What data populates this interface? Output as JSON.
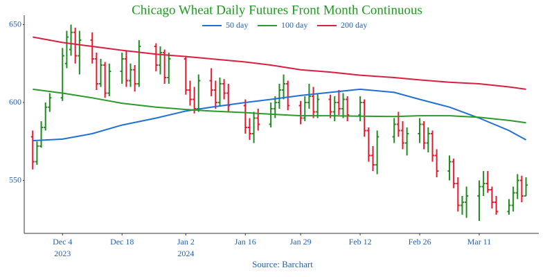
{
  "chart_data": {
    "type": "ohlc",
    "title": "Chicago Wheat Daily Futures Front Month Continuous",
    "source": "Source: Barchart",
    "increasing_color": "#1f8a1f",
    "decreasing_color": "#e8172b",
    "x": [
      "2023-11-27",
      "2023-11-28",
      "2023-11-29",
      "2023-11-30",
      "2023-12-01",
      "2023-12-04",
      "2023-12-05",
      "2023-12-06",
      "2023-12-07",
      "2023-12-08",
      "2023-12-11",
      "2023-12-12",
      "2023-12-13",
      "2023-12-14",
      "2023-12-15",
      "2023-12-18",
      "2023-12-19",
      "2023-12-20",
      "2023-12-21",
      "2023-12-22",
      "2023-12-26",
      "2023-12-27",
      "2023-12-28",
      "2023-12-29",
      "2024-01-02",
      "2024-01-03",
      "2024-01-04",
      "2024-01-05",
      "2024-01-08",
      "2024-01-09",
      "2024-01-10",
      "2024-01-11",
      "2024-01-12",
      "2024-01-16",
      "2024-01-17",
      "2024-01-18",
      "2024-01-19",
      "2024-01-22",
      "2024-01-23",
      "2024-01-24",
      "2024-01-25",
      "2024-01-26",
      "2024-01-29",
      "2024-01-30",
      "2024-01-31",
      "2024-02-01",
      "2024-02-02",
      "2024-02-05",
      "2024-02-06",
      "2024-02-07",
      "2024-02-08",
      "2024-02-09",
      "2024-02-12",
      "2024-02-13",
      "2024-02-14",
      "2024-02-15",
      "2024-02-16",
      "2024-02-20",
      "2024-02-21",
      "2024-02-22",
      "2024-02-23",
      "2024-02-26",
      "2024-02-27",
      "2024-02-28",
      "2024-02-29",
      "2024-03-01",
      "2024-03-04",
      "2024-03-05",
      "2024-03-06",
      "2024-03-07",
      "2024-03-08",
      "2024-03-11",
      "2024-03-12",
      "2024-03-13",
      "2024-03-14",
      "2024-03-15",
      "2024-03-18",
      "2024-03-19",
      "2024-03-20",
      "2024-03-21",
      "2024-03-22"
    ],
    "open": [
      578,
      562,
      572,
      584,
      597,
      603,
      625,
      634,
      645,
      630,
      640,
      628,
      612,
      624,
      606,
      620,
      628,
      614,
      621,
      612,
      636,
      624,
      632,
      616,
      628,
      608,
      602,
      596,
      614,
      608,
      600,
      612,
      606,
      598,
      584,
      580,
      590,
      586,
      596,
      600,
      608,
      612,
      598,
      590,
      600,
      604,
      594,
      602,
      594,
      600,
      596,
      602,
      592,
      600,
      582,
      566,
      560,
      578,
      586,
      582,
      574,
      580,
      586,
      574,
      580,
      566,
      556,
      562,
      548,
      534,
      536,
      540,
      546,
      548,
      544,
      536,
      530,
      534,
      542,
      550,
      540
    ],
    "high": [
      582,
      575,
      588,
      600,
      606,
      635,
      646,
      650,
      648,
      646,
      645,
      632,
      628,
      626,
      625,
      632,
      633,
      625,
      624,
      640,
      638,
      636,
      634,
      632,
      630,
      614,
      610,
      618,
      622,
      614,
      616,
      615,
      612,
      602,
      590,
      594,
      596,
      600,
      604,
      612,
      618,
      614,
      601,
      604,
      612,
      610,
      606,
      605,
      604,
      608,
      606,
      604,
      604,
      602,
      584,
      572,
      582,
      590,
      594,
      588,
      584,
      590,
      588,
      584,
      582,
      570,
      566,
      564,
      552,
      540,
      546,
      550,
      556,
      556,
      546,
      540,
      538,
      546,
      554,
      553,
      552
    ],
    "low": [
      557,
      560,
      571,
      582,
      594,
      601,
      622,
      630,
      625,
      618,
      625,
      608,
      610,
      603,
      604,
      612,
      610,
      610,
      607,
      610,
      620,
      618,
      612,
      612,
      605,
      598,
      593,
      594,
      604,
      596,
      598,
      602,
      594,
      580,
      576,
      574,
      582,
      584,
      590,
      596,
      602,
      595,
      586,
      588,
      596,
      590,
      590,
      590,
      588,
      592,
      590,
      588,
      588,
      578,
      562,
      556,
      554,
      574,
      578,
      570,
      566,
      574,
      570,
      568,
      562,
      552,
      550,
      545,
      530,
      528,
      526,
      524,
      540,
      542,
      532,
      528,
      528,
      530,
      538,
      536,
      540
    ],
    "close": [
      562,
      572,
      584,
      597,
      603,
      630,
      642,
      645,
      630,
      640,
      628,
      612,
      624,
      606,
      620,
      628,
      614,
      621,
      612,
      636,
      624,
      632,
      616,
      628,
      608,
      602,
      596,
      614,
      608,
      600,
      612,
      606,
      598,
      584,
      580,
      590,
      586,
      596,
      600,
      608,
      612,
      598,
      590,
      600,
      604,
      594,
      602,
      594,
      600,
      596,
      602,
      592,
      600,
      582,
      566,
      560,
      578,
      586,
      582,
      574,
      580,
      586,
      574,
      580,
      566,
      556,
      562,
      548,
      534,
      536,
      540,
      546,
      548,
      544,
      536,
      530,
      534,
      542,
      550,
      540,
      547
    ],
    "series": [
      {
        "name": "50 day",
        "color": "#1f6fd6",
        "x": [
          "2023-11-27",
          "2023-12-04",
          "2023-12-11",
          "2023-12-18",
          "2023-12-26",
          "2024-01-02",
          "2024-01-08",
          "2024-01-16",
          "2024-01-22",
          "2024-01-29",
          "2024-02-05",
          "2024-02-12",
          "2024-02-20",
          "2024-02-26",
          "2024-03-04",
          "2024-03-11",
          "2024-03-18",
          "2024-03-22"
        ],
        "values": [
          575.5,
          576.5,
          580,
          585.5,
          590,
          594.5,
          597,
          600,
          602,
          604.5,
          606.5,
          608.5,
          606.5,
          602,
          597,
          590,
          582,
          576
        ]
      },
      {
        "name": "100 day",
        "color": "#2a9a2a",
        "x": [
          "2023-11-27",
          "2023-12-04",
          "2023-12-11",
          "2023-12-18",
          "2023-12-26",
          "2024-01-02",
          "2024-01-08",
          "2024-01-16",
          "2024-01-22",
          "2024-01-29",
          "2024-02-05",
          "2024-02-12",
          "2024-02-20",
          "2024-02-26",
          "2024-03-04",
          "2024-03-11",
          "2024-03-18",
          "2024-03-22"
        ],
        "values": [
          608.5,
          606,
          603,
          599.5,
          597,
          595.5,
          594.5,
          593.5,
          592.5,
          591.5,
          591.5,
          591.2,
          591,
          591.5,
          591.5,
          590.5,
          588.5,
          587
        ]
      },
      {
        "name": "200 day",
        "color": "#d81f3f",
        "x": [
          "2023-11-27",
          "2023-12-04",
          "2023-12-11",
          "2023-12-18",
          "2023-12-26",
          "2024-01-02",
          "2024-01-08",
          "2024-01-16",
          "2024-01-22",
          "2024-01-29",
          "2024-02-05",
          "2024-02-12",
          "2024-02-20",
          "2024-02-26",
          "2024-03-04",
          "2024-03-11",
          "2024-03-18",
          "2024-03-22"
        ],
        "values": [
          642,
          638.5,
          636,
          633.5,
          631,
          629.5,
          628,
          626,
          624,
          621,
          619.5,
          617.5,
          616,
          614.5,
          613,
          612,
          610,
          608.5
        ]
      }
    ],
    "xlim": [
      "2023-11-25",
      "2024-03-25"
    ],
    "xticks": [
      {
        "value": "2023-12-04",
        "label": "Dec 4",
        "sublabel": "2023"
      },
      {
        "value": "2023-12-18",
        "label": "Dec 18"
      },
      {
        "value": "2024-01-02",
        "label": "Jan 2",
        "sublabel": "2024"
      },
      {
        "value": "2024-01-16",
        "label": "Jan 16"
      },
      {
        "value": "2024-01-29",
        "label": "Jan 29"
      },
      {
        "value": "2024-02-12",
        "label": "Feb 12"
      },
      {
        "value": "2024-02-26",
        "label": "Feb 26"
      },
      {
        "value": "2024-03-11",
        "label": "Mar 11"
      }
    ],
    "ylim": [
      516,
      656
    ],
    "yticks": [
      550,
      600,
      650
    ],
    "grid": false
  }
}
